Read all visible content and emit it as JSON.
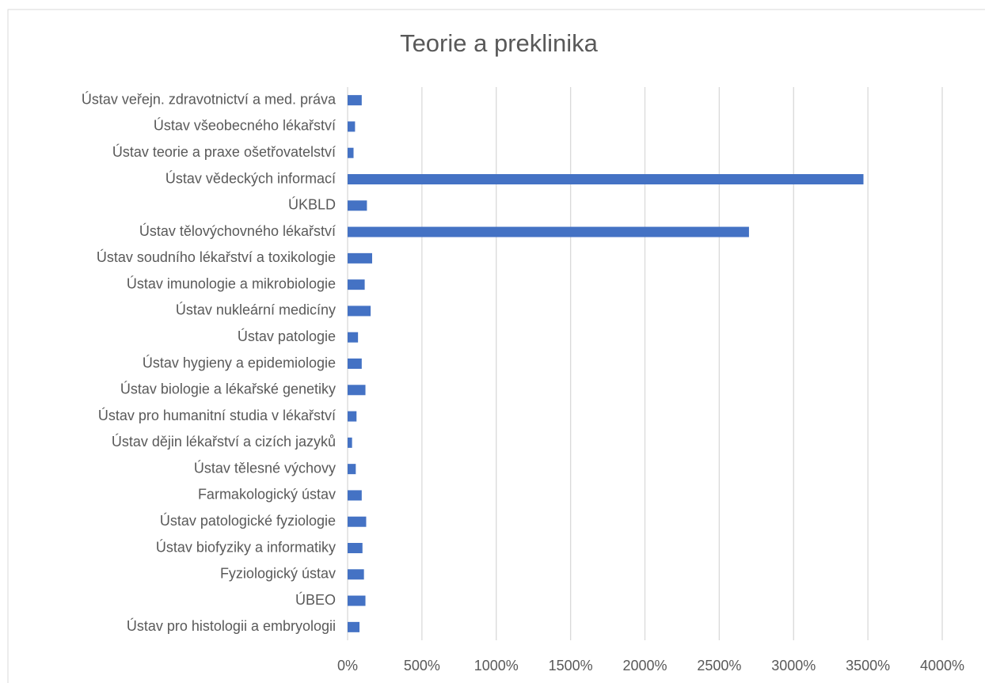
{
  "chart_data": {
    "type": "barh",
    "title": "Teorie a preklinika",
    "categories": [
      "Ústav veřejn. zdravotnictví a med. práva",
      "Ústav všeobecného lékařství",
      "Ústav teorie a praxe ošetřovatelství",
      "Ústav vědeckých informací",
      "ÚKBLD",
      "Ústav tělovýchovného lékařství",
      "Ústav soudního lékařství a toxikologie",
      "Ústav imunologie a mikrobiologie",
      "Ústav nukleární medicíny",
      "Ústav patologie",
      "Ústav hygieny a epidemiologie",
      "Ústav biologie a lékařské genetiky",
      "Ústav pro humanitní studia v lékařství",
      "Ústav dějin lékařství a cizích jazyků",
      "Ústav tělesné výchovy",
      "Farmakologický ústav",
      "Ústav patologické fyziologie",
      "Ústav biofyziky a informatiky",
      "Fyziologický ústav",
      "ÚBEO",
      "Ústav pro histologii a embryologii"
    ],
    "values": [
      95,
      50,
      40,
      3470,
      130,
      2700,
      165,
      115,
      155,
      70,
      95,
      120,
      60,
      30,
      55,
      95,
      125,
      100,
      110,
      120,
      80
    ],
    "color": "#4472c4",
    "xlim": [
      0,
      4000
    ],
    "xticks": [
      {
        "value": 0,
        "label": "0%"
      },
      {
        "value": 500,
        "label": "500%"
      },
      {
        "value": 1000,
        "label": "1000%"
      },
      {
        "value": 1500,
        "label": "1500%"
      },
      {
        "value": 2000,
        "label": "2000%"
      },
      {
        "value": 2500,
        "label": "2500%"
      },
      {
        "value": 3000,
        "label": "3000%"
      },
      {
        "value": 3500,
        "label": "3500%"
      },
      {
        "value": 4000,
        "label": "4000%"
      }
    ],
    "grid": true
  }
}
